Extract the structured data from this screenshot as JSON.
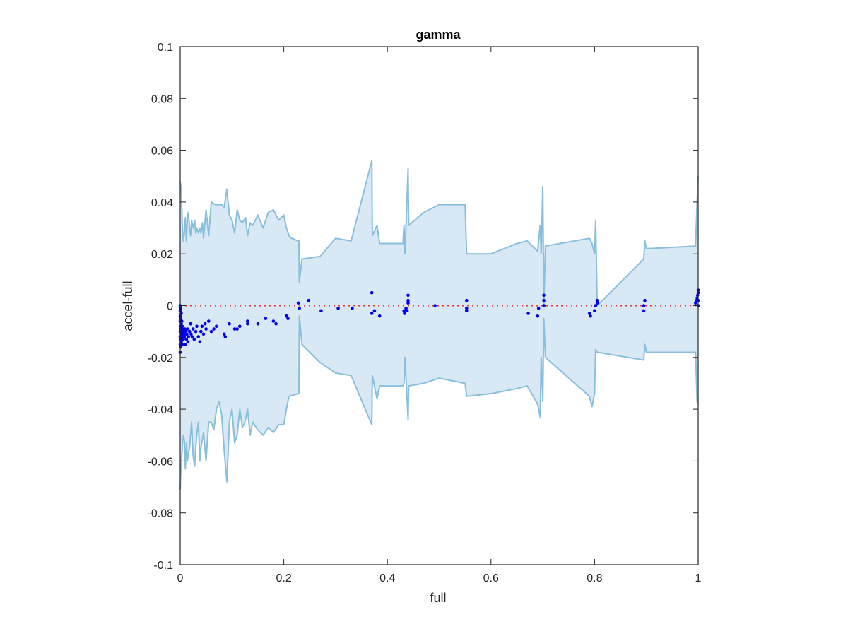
{
  "chart_data": {
    "type": "scatter",
    "title": "gamma",
    "xlabel": "full",
    "ylabel": "accel-full",
    "xlim": [
      0,
      1
    ],
    "ylim": [
      -0.1,
      0.1
    ],
    "x_ticks": [
      0,
      0.2,
      0.4,
      0.6,
      0.8,
      1
    ],
    "x_tick_labels": [
      "0",
      "0.2",
      "0.4",
      "0.6",
      "0.8",
      "1"
    ],
    "y_ticks": [
      -0.1,
      -0.08,
      -0.06,
      -0.04,
      -0.02,
      0,
      0.02,
      0.04,
      0.06,
      0.08,
      0.1
    ],
    "y_tick_labels": [
      "-0.1",
      "-0.08",
      "-0.06",
      "-0.04",
      "-0.02",
      "0",
      "0.02",
      "0.04",
      "0.06",
      "0.08",
      "0.1"
    ],
    "grid": false,
    "colors": {
      "band_fill": "#d9e8f5",
      "band_edge": "#89bfdd",
      "points": "#0000ee",
      "reference_line": "#ee3333",
      "axes": "#262626"
    },
    "reference_line_y": 0,
    "band": {
      "upper": [
        [
          0.0,
          0.048
        ],
        [
          0.002,
          0.045
        ],
        [
          0.004,
          0.032
        ],
        [
          0.006,
          0.025
        ],
        [
          0.008,
          0.028
        ],
        [
          0.01,
          0.034
        ],
        [
          0.012,
          0.025
        ],
        [
          0.014,
          0.035
        ],
        [
          0.016,
          0.036
        ],
        [
          0.018,
          0.03
        ],
        [
          0.02,
          0.027
        ],
        [
          0.022,
          0.033
        ],
        [
          0.025,
          0.03
        ],
        [
          0.028,
          0.033
        ],
        [
          0.03,
          0.028
        ],
        [
          0.032,
          0.03
        ],
        [
          0.035,
          0.028
        ],
        [
          0.038,
          0.03
        ],
        [
          0.04,
          0.028
        ],
        [
          0.043,
          0.032
        ],
        [
          0.045,
          0.026
        ],
        [
          0.05,
          0.037
        ],
        [
          0.055,
          0.027
        ],
        [
          0.06,
          0.04
        ],
        [
          0.068,
          0.039
        ],
        [
          0.08,
          0.039
        ],
        [
          0.085,
          0.038
        ],
        [
          0.09,
          0.045
        ],
        [
          0.095,
          0.035
        ],
        [
          0.1,
          0.033
        ],
        [
          0.105,
          0.028
        ],
        [
          0.11,
          0.037
        ],
        [
          0.115,
          0.033
        ],
        [
          0.12,
          0.032
        ],
        [
          0.126,
          0.034
        ],
        [
          0.13,
          0.027
        ],
        [
          0.135,
          0.032
        ],
        [
          0.14,
          0.031
        ],
        [
          0.15,
          0.035
        ],
        [
          0.16,
          0.03
        ],
        [
          0.17,
          0.036
        ],
        [
          0.18,
          0.037
        ],
        [
          0.19,
          0.033
        ],
        [
          0.2,
          0.035
        ],
        [
          0.205,
          0.03
        ],
        [
          0.21,
          0.027
        ],
        [
          0.215,
          0.026
        ],
        [
          0.228,
          0.025
        ],
        [
          0.229,
          0.025
        ],
        [
          0.23,
          0.009
        ],
        [
          0.235,
          0.018
        ],
        [
          0.27,
          0.019
        ],
        [
          0.3,
          0.026
        ],
        [
          0.33,
          0.025
        ],
        [
          0.37,
          0.056
        ],
        [
          0.371,
          0.027
        ],
        [
          0.38,
          0.031
        ],
        [
          0.385,
          0.024
        ],
        [
          0.43,
          0.024
        ],
        [
          0.432,
          0.031
        ],
        [
          0.434,
          0.02
        ],
        [
          0.44,
          0.053
        ],
        [
          0.441,
          0.031
        ],
        [
          0.47,
          0.036
        ],
        [
          0.5,
          0.039
        ],
        [
          0.55,
          0.039
        ],
        [
          0.553,
          0.02
        ],
        [
          0.6,
          0.02
        ],
        [
          0.65,
          0.024
        ],
        [
          0.67,
          0.025
        ],
        [
          0.69,
          0.021
        ],
        [
          0.695,
          0.031
        ],
        [
          0.697,
          0.02
        ],
        [
          0.7,
          0.046
        ],
        [
          0.702,
          0.0
        ],
        [
          0.705,
          0.023
        ],
        [
          0.79,
          0.026
        ],
        [
          0.795,
          0.024
        ],
        [
          0.8,
          0.02
        ],
        [
          0.802,
          0.033
        ],
        [
          0.805,
          0.0
        ],
        [
          0.895,
          0.018
        ],
        [
          0.897,
          0.025
        ],
        [
          0.9,
          0.022
        ],
        [
          0.995,
          0.023
        ],
        [
          0.998,
          0.04
        ],
        [
          1.0,
          0.05
        ]
      ],
      "lower": [
        [
          0.0,
          -0.071
        ],
        [
          0.002,
          -0.06
        ],
        [
          0.004,
          -0.055
        ],
        [
          0.006,
          -0.05
        ],
        [
          0.008,
          -0.052
        ],
        [
          0.01,
          -0.063
        ],
        [
          0.012,
          -0.053
        ],
        [
          0.014,
          -0.06
        ],
        [
          0.016,
          -0.057
        ],
        [
          0.018,
          -0.055
        ],
        [
          0.02,
          -0.05
        ],
        [
          0.022,
          -0.045
        ],
        [
          0.025,
          -0.058
        ],
        [
          0.028,
          -0.062
        ],
        [
          0.03,
          -0.055
        ],
        [
          0.032,
          -0.05
        ],
        [
          0.035,
          -0.045
        ],
        [
          0.038,
          -0.06
        ],
        [
          0.04,
          -0.055
        ],
        [
          0.045,
          -0.049
        ],
        [
          0.05,
          -0.06
        ],
        [
          0.055,
          -0.045
        ],
        [
          0.06,
          -0.045
        ],
        [
          0.065,
          -0.048
        ],
        [
          0.07,
          -0.04
        ],
        [
          0.075,
          -0.037
        ],
        [
          0.08,
          -0.042
        ],
        [
          0.085,
          -0.056
        ],
        [
          0.09,
          -0.068
        ],
        [
          0.095,
          -0.045
        ],
        [
          0.1,
          -0.04
        ],
        [
          0.105,
          -0.053
        ],
        [
          0.11,
          -0.05
        ],
        [
          0.115,
          -0.04
        ],
        [
          0.12,
          -0.047
        ],
        [
          0.125,
          -0.045
        ],
        [
          0.13,
          -0.04
        ],
        [
          0.135,
          -0.05
        ],
        [
          0.14,
          -0.045
        ],
        [
          0.15,
          -0.048
        ],
        [
          0.16,
          -0.05
        ],
        [
          0.17,
          -0.047
        ],
        [
          0.18,
          -0.049
        ],
        [
          0.19,
          -0.046
        ],
        [
          0.2,
          -0.046
        ],
        [
          0.205,
          -0.04
        ],
        [
          0.21,
          -0.035
        ],
        [
          0.228,
          -0.034
        ],
        [
          0.229,
          -0.034
        ],
        [
          0.23,
          -0.004
        ],
        [
          0.235,
          -0.015
        ],
        [
          0.27,
          -0.022
        ],
        [
          0.3,
          -0.026
        ],
        [
          0.33,
          -0.027
        ],
        [
          0.37,
          -0.046
        ],
        [
          0.371,
          -0.027
        ],
        [
          0.38,
          -0.036
        ],
        [
          0.385,
          -0.031
        ],
        [
          0.43,
          -0.031
        ],
        [
          0.432,
          -0.03
        ],
        [
          0.434,
          -0.02
        ],
        [
          0.44,
          -0.044
        ],
        [
          0.441,
          -0.031
        ],
        [
          0.47,
          -0.03
        ],
        [
          0.5,
          -0.028
        ],
        [
          0.55,
          -0.03
        ],
        [
          0.553,
          -0.035
        ],
        [
          0.6,
          -0.034
        ],
        [
          0.65,
          -0.032
        ],
        [
          0.67,
          -0.031
        ],
        [
          0.69,
          -0.038
        ],
        [
          0.695,
          -0.043
        ],
        [
          0.697,
          -0.02
        ],
        [
          0.7,
          -0.037
        ],
        [
          0.702,
          -0.005
        ],
        [
          0.705,
          -0.02
        ],
        [
          0.79,
          -0.035
        ],
        [
          0.795,
          -0.039
        ],
        [
          0.8,
          -0.034
        ],
        [
          0.802,
          -0.017
        ],
        [
          0.805,
          -0.018
        ],
        [
          0.895,
          -0.021
        ],
        [
          0.897,
          -0.015
        ],
        [
          0.9,
          -0.018
        ],
        [
          0.995,
          -0.018
        ],
        [
          0.998,
          -0.037
        ],
        [
          1.0,
          -0.038
        ]
      ]
    },
    "points": [
      [
        0.0,
        -0.018
      ],
      [
        0.0,
        -0.015
      ],
      [
        0.0,
        -0.012
      ],
      [
        0.0,
        -0.01
      ],
      [
        0.0,
        -0.008
      ],
      [
        0.0,
        -0.006
      ],
      [
        0.0,
        -0.004
      ],
      [
        0.0,
        -0.002
      ],
      [
        0.0,
        0.0
      ],
      [
        0.001,
        -0.016
      ],
      [
        0.001,
        -0.013
      ],
      [
        0.001,
        -0.009
      ],
      [
        0.001,
        -0.005
      ],
      [
        0.001,
        -0.001
      ],
      [
        0.002,
        -0.014
      ],
      [
        0.002,
        -0.011
      ],
      [
        0.002,
        -0.007
      ],
      [
        0.002,
        -0.003
      ],
      [
        0.003,
        -0.012
      ],
      [
        0.003,
        -0.009
      ],
      [
        0.003,
        -0.006
      ],
      [
        0.004,
        -0.015
      ],
      [
        0.004,
        -0.01
      ],
      [
        0.004,
        -0.008
      ],
      [
        0.005,
        -0.012
      ],
      [
        0.005,
        -0.009
      ],
      [
        0.006,
        -0.011
      ],
      [
        0.006,
        -0.013
      ],
      [
        0.007,
        -0.01
      ],
      [
        0.008,
        -0.012
      ],
      [
        0.009,
        -0.009
      ],
      [
        0.01,
        -0.015
      ],
      [
        0.01,
        -0.011
      ],
      [
        0.011,
        -0.01
      ],
      [
        0.012,
        -0.013
      ],
      [
        0.013,
        -0.011
      ],
      [
        0.014,
        -0.009
      ],
      [
        0.015,
        -0.014
      ],
      [
        0.016,
        -0.012
      ],
      [
        0.018,
        -0.01
      ],
      [
        0.02,
        -0.007
      ],
      [
        0.021,
        -0.011
      ],
      [
        0.023,
        -0.012
      ],
      [
        0.025,
        -0.009
      ],
      [
        0.027,
        -0.013
      ],
      [
        0.03,
        -0.01
      ],
      [
        0.032,
        -0.008
      ],
      [
        0.035,
        -0.012
      ],
      [
        0.038,
        -0.014
      ],
      [
        0.04,
        -0.01
      ],
      [
        0.042,
        -0.008
      ],
      [
        0.045,
        -0.011
      ],
      [
        0.048,
        -0.007
      ],
      [
        0.05,
        -0.009
      ],
      [
        0.055,
        -0.006
      ],
      [
        0.06,
        -0.01
      ],
      [
        0.065,
        -0.009
      ],
      [
        0.07,
        -0.008
      ],
      [
        0.085,
        -0.011
      ],
      [
        0.087,
        -0.012
      ],
      [
        0.095,
        -0.007
      ],
      [
        0.105,
        -0.009
      ],
      [
        0.11,
        -0.009
      ],
      [
        0.115,
        -0.008
      ],
      [
        0.13,
        -0.007
      ],
      [
        0.13,
        -0.006
      ],
      [
        0.15,
        -0.007
      ],
      [
        0.165,
        -0.005
      ],
      [
        0.18,
        -0.006
      ],
      [
        0.185,
        -0.007
      ],
      [
        0.205,
        -0.004
      ],
      [
        0.208,
        -0.005
      ],
      [
        0.228,
        0.001
      ],
      [
        0.23,
        -0.001
      ],
      [
        0.248,
        0.002
      ],
      [
        0.272,
        -0.002
      ],
      [
        0.305,
        -0.001
      ],
      [
        0.332,
        -0.001
      ],
      [
        0.37,
        0.005
      ],
      [
        0.37,
        -0.003
      ],
      [
        0.375,
        -0.002
      ],
      [
        0.385,
        -0.004
      ],
      [
        0.432,
        -0.002
      ],
      [
        0.433,
        -0.003
      ],
      [
        0.436,
        -0.001
      ],
      [
        0.438,
        -0.002
      ],
      [
        0.44,
        0.001
      ],
      [
        0.44,
        0.004
      ],
      [
        0.44,
        0.002
      ],
      [
        0.492,
        0.0
      ],
      [
        0.553,
        0.002
      ],
      [
        0.553,
        -0.001
      ],
      [
        0.553,
        -0.002
      ],
      [
        0.672,
        -0.003
      ],
      [
        0.69,
        -0.004
      ],
      [
        0.692,
        -0.001
      ],
      [
        0.702,
        0.004
      ],
      [
        0.702,
        0.002
      ],
      [
        0.702,
        0.0
      ],
      [
        0.79,
        -0.003
      ],
      [
        0.792,
        -0.004
      ],
      [
        0.8,
        -0.002
      ],
      [
        0.802,
        0.0
      ],
      [
        0.805,
        0.002
      ],
      [
        0.805,
        0.001
      ],
      [
        0.895,
        0.0
      ],
      [
        0.895,
        -0.002
      ],
      [
        0.897,
        0.002
      ],
      [
        0.995,
        0.001
      ],
      [
        0.997,
        0.002
      ],
      [
        0.998,
        0.003
      ],
      [
        0.999,
        0.004
      ],
      [
        1.0,
        0.006
      ],
      [
        1.0,
        0.005
      ],
      [
        1.0,
        0.0
      ],
      [
        1.0,
        0.002
      ]
    ]
  }
}
